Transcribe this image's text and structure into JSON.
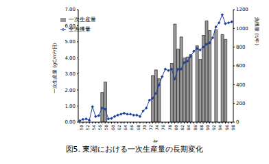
{
  "chart_data": {
    "type": "bar",
    "title": "図5.  東湖における一次生産量の長期変化",
    "x_label": "年",
    "y_label": "一次生産量 (gC/m²/日)",
    "y2_label": "漁獲量 (t/年)",
    "categories": [
      "50",
      null,
      "52",
      null,
      "54",
      null,
      "56",
      null,
      "58",
      null,
      "60",
      null,
      "62",
      null,
      "64",
      null,
      "66",
      null,
      "68",
      null,
      "70",
      null,
      "72",
      null,
      "74",
      null,
      "76",
      null,
      "78",
      null,
      "80",
      null,
      "82",
      null,
      "84",
      null,
      "86",
      null,
      "88",
      null,
      "90",
      null,
      "92",
      null,
      "94",
      null,
      "96",
      null,
      "98"
    ],
    "series": [
      {
        "name": "一次生産量",
        "type": "bar",
        "color": "#9a9a9a",
        "values": [
          null,
          null,
          null,
          null,
          null,
          null,
          null,
          1.85,
          2.5,
          null,
          null,
          null,
          null,
          null,
          null,
          null,
          null,
          null,
          null,
          null,
          null,
          null,
          null,
          2.9,
          3.25,
          2.7,
          null,
          null,
          null,
          3.65,
          6.1,
          4.55,
          5.3,
          4.0,
          4.05,
          4.2,
          null,
          4.75,
          3.9,
          5.4,
          6.3,
          5.7,
          null,
          5.75,
          null,
          5.45,
          5.15,
          null,
          null
        ]
      },
      {
        "name": "全漁獲量",
        "type": "line",
        "axis": "y2",
        "color": "#1f3f9f",
        "marker": "diamond",
        "values": [
          15,
          30,
          35,
          20,
          165,
          60,
          70,
          150,
          140,
          35,
          40,
          60,
          75,
          85,
          95,
          85,
          85,
          75,
          75,
          60,
          120,
          150,
          235,
          255,
          305,
          395,
          485,
          565,
          550,
          565,
          460,
          565,
          565,
          635,
          650,
          700,
          755,
          785,
          770,
          800,
          830,
          845,
          900,
          1015,
          1060,
          1145,
          1050,
          1060,
          1070
        ]
      }
    ],
    "ylim": [
      0,
      7
    ],
    "yticks": [
      {
        "value": 0,
        "label": "0.00"
      },
      {
        "value": 1,
        "label": "1.00"
      },
      {
        "value": 2,
        "label": "2.00"
      },
      {
        "value": 3,
        "label": "3.00"
      },
      {
        "value": 4,
        "label": "4.00"
      },
      {
        "value": 5,
        "label": "5.00"
      },
      {
        "value": 6,
        "label": "6.00"
      },
      {
        "value": 7,
        "label": "7.00"
      }
    ],
    "y2lim": [
      0,
      1200
    ],
    "y2ticks": [
      0,
      200,
      400,
      600,
      800,
      1000,
      1200
    ],
    "legend": "upper left",
    "grid": false
  }
}
